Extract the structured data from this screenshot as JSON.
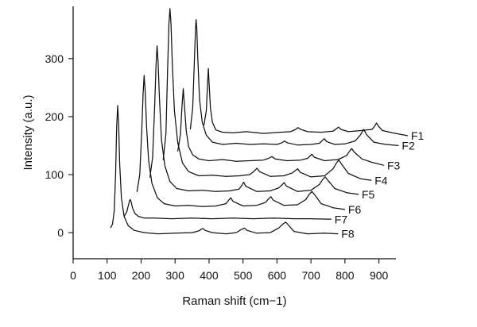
{
  "chart_data": {
    "type": "line",
    "title": "",
    "xlabel": "Raman shift (cm−1)",
    "ylabel": "Intensity (a.u.)",
    "xlim": [
      0,
      950
    ],
    "ylim": [
      -45,
      390
    ],
    "x_ticks": [
      0,
      100,
      200,
      300,
      400,
      500,
      600,
      700,
      800,
      900
    ],
    "y_ticks": [
      0,
      100,
      200,
      300
    ],
    "grid": false,
    "legend": "none",
    "note": "Stacked waterfall spectra: each curve is shifted horizontally and vertically; the series names are printed at the right end of each curve.",
    "series": [
      {
        "name": "F1",
        "peaks": [
          [
            398,
            283
          ],
          [
            662,
            181
          ],
          [
            781,
            182
          ],
          [
            893,
            189
          ]
        ],
        "x": [
          385,
          392,
          396,
          398,
          400,
          404,
          410,
          420,
          440,
          470,
          510,
          560,
          610,
          640,
          655,
          662,
          670,
          690,
          730,
          765,
          775,
          781,
          788,
          810,
          850,
          880,
          888,
          893,
          898,
          910,
          940,
          985
        ],
        "y": [
          185,
          210,
          260,
          283,
          260,
          215,
          190,
          177,
          173,
          172,
          174,
          171,
          173,
          174,
          178,
          181,
          178,
          174,
          173,
          175,
          179,
          182,
          178,
          174,
          176,
          178,
          184,
          189,
          184,
          176,
          172,
          167
        ]
      },
      {
        "name": "F2",
        "peaks": [
          [
            362,
            367
          ],
          [
            622,
            158
          ],
          [
            739,
            162
          ],
          [
            855,
            178
          ]
        ],
        "x": [
          345,
          352,
          357,
          360,
          362,
          364,
          367,
          372,
          380,
          392,
          410,
          440,
          480,
          520,
          560,
          600,
          615,
          622,
          630,
          660,
          700,
          725,
          732,
          739,
          746,
          770,
          800,
          830,
          845,
          855,
          865,
          885,
          920,
          958
        ],
        "y": [
          178,
          215,
          300,
          350,
          367,
          350,
          300,
          230,
          190,
          168,
          156,
          152,
          154,
          152,
          153,
          152,
          155,
          158,
          155,
          151,
          152,
          154,
          158,
          162,
          157,
          152,
          153,
          158,
          168,
          178,
          168,
          156,
          152,
          150
        ]
      },
      {
        "name": "F3",
        "peaks": [
          [
            324,
            248
          ],
          [
            585,
            131
          ],
          [
            703,
            135
          ],
          [
            820,
            145
          ]
        ],
        "x": [
          308,
          316,
          320,
          324,
          328,
          333,
          340,
          352,
          370,
          400,
          440,
          480,
          520,
          560,
          575,
          585,
          595,
          630,
          670,
          690,
          697,
          703,
          710,
          740,
          780,
          805,
          813,
          820,
          827,
          850,
          880,
          915
        ],
        "y": [
          140,
          170,
          215,
          248,
          215,
          175,
          148,
          134,
          127,
          124,
          126,
          123,
          124,
          125,
          128,
          131,
          127,
          124,
          125,
          128,
          132,
          135,
          130,
          124,
          126,
          133,
          140,
          145,
          139,
          127,
          121,
          116
        ]
      },
      {
        "name": "F4",
        "peaks": [
          [
            285,
            386
          ],
          [
            541,
            111
          ],
          [
            661,
            110
          ],
          [
            782,
            125
          ]
        ],
        "x": [
          265,
          273,
          278,
          282,
          285,
          288,
          292,
          298,
          308,
          322,
          340,
          370,
          410,
          450,
          490,
          520,
          533,
          541,
          549,
          580,
          620,
          645,
          654,
          661,
          668,
          700,
          740,
          765,
          775,
          782,
          790,
          810,
          845,
          878
        ],
        "y": [
          125,
          170,
          280,
          360,
          386,
          360,
          290,
          210,
          155,
          120,
          105,
          98,
          99,
          97,
          98,
          100,
          106,
          111,
          105,
          97,
          98,
          103,
          107,
          110,
          104,
          96,
          98,
          110,
          120,
          125,
          118,
          102,
          93,
          90
        ]
      },
      {
        "name": "F5",
        "peaks": [
          [
            247,
            322
          ],
          [
            502,
            87
          ],
          [
            621,
            86
          ],
          [
            742,
            96
          ]
        ],
        "x": [
          226,
          234,
          240,
          244,
          247,
          250,
          254,
          260,
          270,
          285,
          305,
          340,
          380,
          420,
          460,
          488,
          496,
          502,
          508,
          540,
          580,
          605,
          614,
          621,
          628,
          660,
          700,
          725,
          735,
          742,
          750,
          770,
          805,
          840
        ],
        "y": [
          95,
          130,
          220,
          290,
          322,
          295,
          230,
          160,
          115,
          88,
          76,
          72,
          73,
          71,
          72,
          75,
          81,
          87,
          80,
          71,
          72,
          77,
          82,
          86,
          80,
          71,
          73,
          83,
          92,
          96,
          90,
          76,
          69,
          66
        ]
      },
      {
        "name": "F6",
        "peaks": [
          [
            209,
            271
          ],
          [
            464,
            60
          ],
          [
            582,
            62
          ],
          [
            703,
            71
          ]
        ],
        "x": [
          188,
          196,
          202,
          206,
          209,
          212,
          216,
          222,
          232,
          248,
          268,
          300,
          340,
          380,
          420,
          450,
          458,
          464,
          470,
          500,
          540,
          566,
          575,
          582,
          589,
          620,
          660,
          685,
          695,
          703,
          711,
          730,
          765,
          800
        ],
        "y": [
          70,
          100,
          175,
          240,
          271,
          245,
          185,
          125,
          85,
          60,
          50,
          46,
          47,
          45,
          46,
          50,
          56,
          60,
          54,
          46,
          47,
          52,
          58,
          62,
          56,
          47,
          48,
          57,
          66,
          71,
          65,
          50,
          43,
          40
        ]
      },
      {
        "name": "F7",
        "peaks": [
          [
            168,
            57
          ]
        ],
        "x": [
          150,
          158,
          163,
          166,
          168,
          171,
          175,
          182,
          192,
          210,
          240,
          290,
          350,
          410,
          470,
          530,
          590,
          650,
          700,
          760
        ],
        "y": [
          28,
          36,
          48,
          55,
          57,
          52,
          42,
          33,
          28,
          25,
          25,
          24,
          25,
          24,
          25,
          24,
          25,
          24,
          24,
          23
        ]
      },
      {
        "name": "F8",
        "peaks": [
          [
            131,
            219
          ],
          [
            383,
            7
          ],
          [
            504,
            8
          ],
          [
            626,
            18
          ]
        ],
        "x": [
          110,
          116,
          121,
          125,
          128,
          131,
          134,
          137,
          142,
          150,
          162,
          180,
          210,
          250,
          300,
          350,
          370,
          378,
          383,
          388,
          410,
          450,
          480,
          494,
          504,
          512,
          540,
          580,
          605,
          618,
          626,
          632,
          650,
          690,
          740,
          780
        ],
        "y": [
          8,
          15,
          38,
          100,
          180,
          219,
          185,
          120,
          60,
          28,
          12,
          4,
          0,
          -2,
          -1,
          0,
          3,
          6,
          7,
          4,
          0,
          -2,
          0,
          5,
          8,
          4,
          -1,
          0,
          8,
          15,
          18,
          14,
          2,
          -2,
          -1,
          -2
        ]
      }
    ]
  }
}
